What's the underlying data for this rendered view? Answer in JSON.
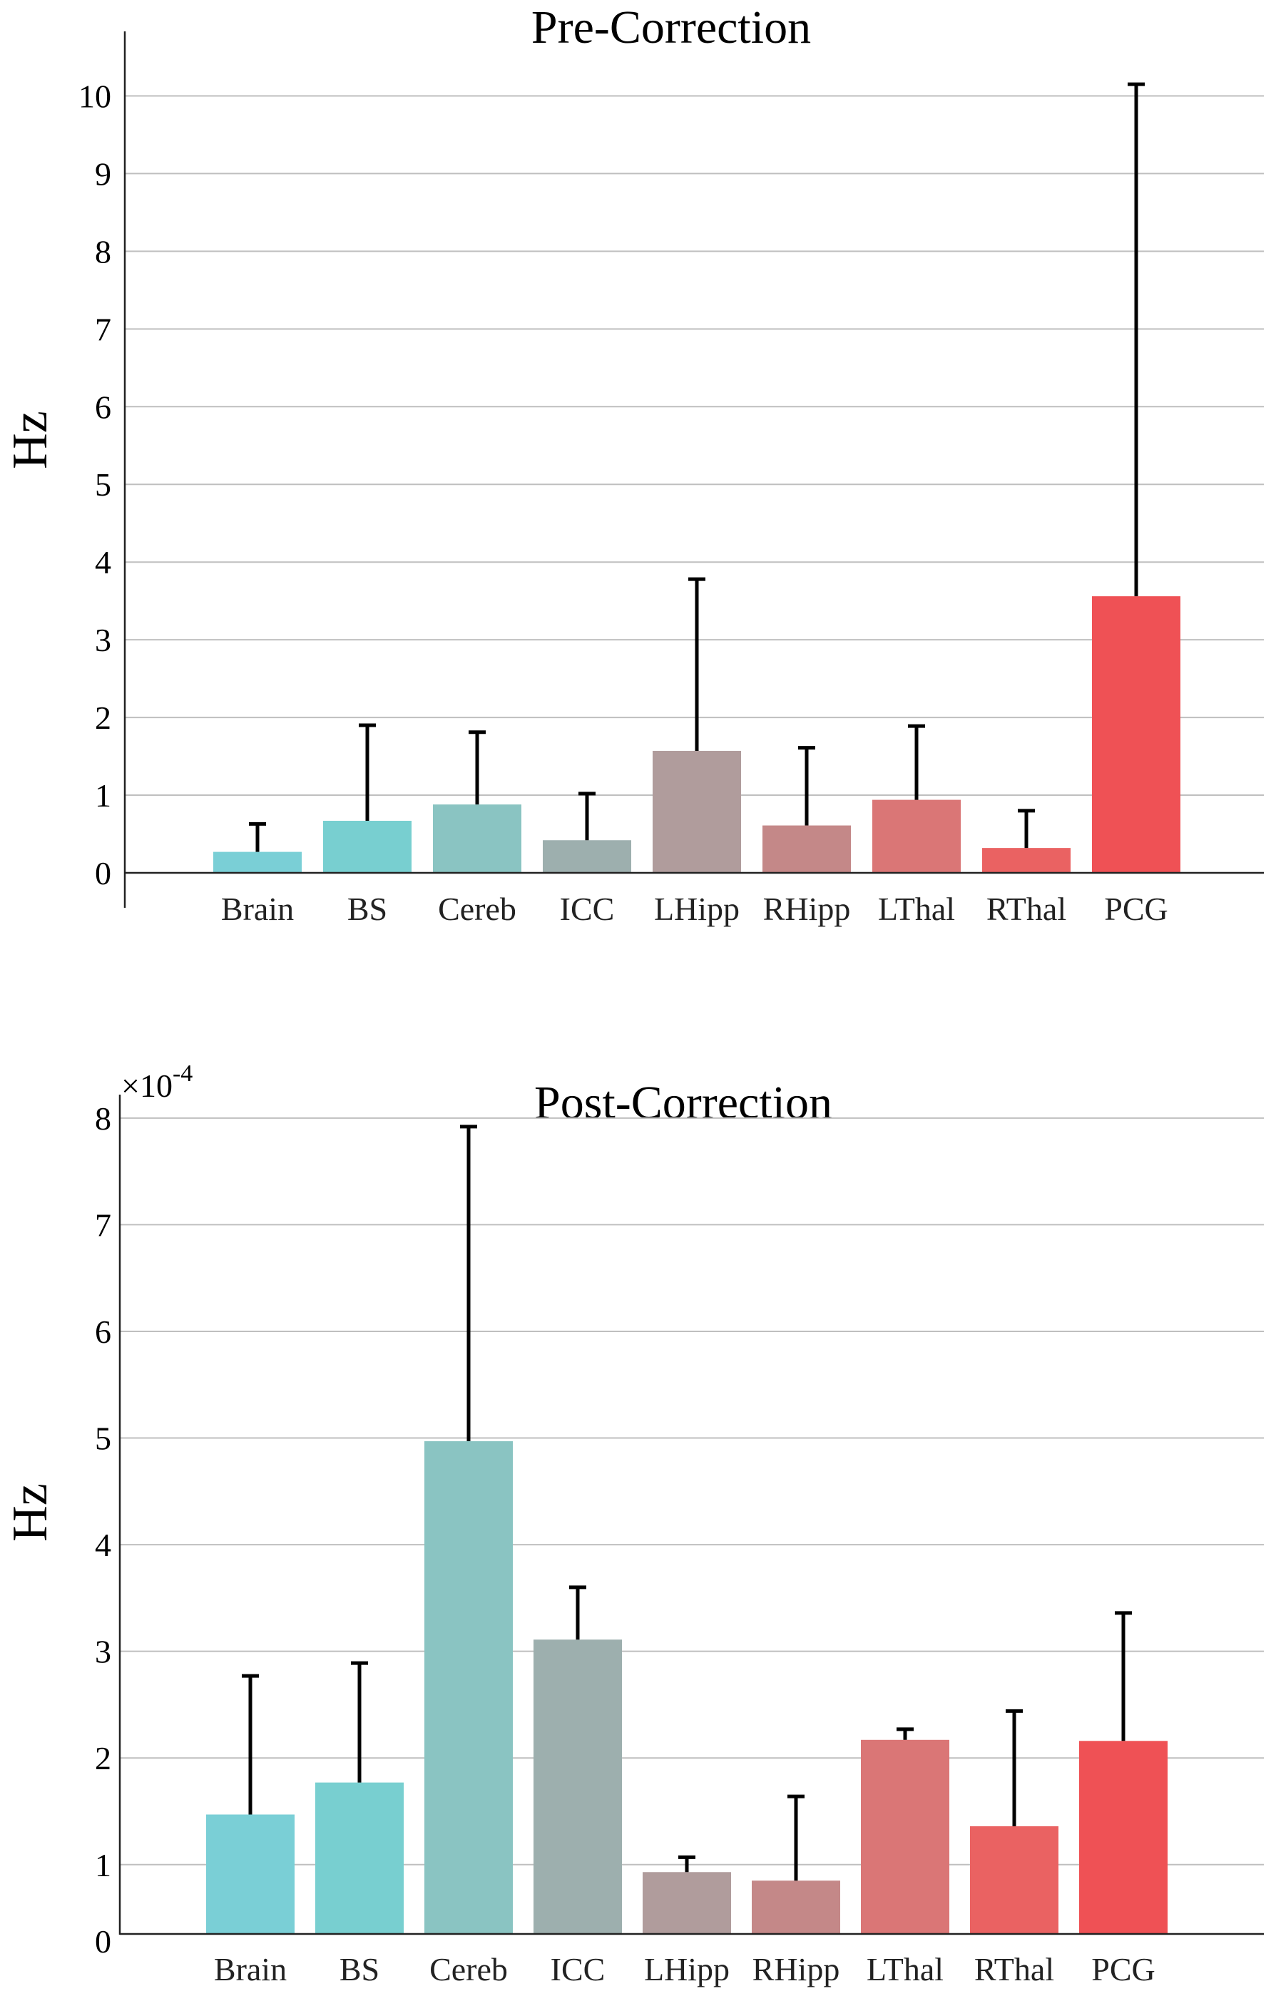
{
  "chart_data": [
    {
      "type": "bar",
      "title": "Pre-Correction",
      "ylabel": "Hz",
      "xlabel": "",
      "categories": [
        "Brain",
        "BS",
        "Cereb",
        "ICC",
        "LHipp",
        "RHipp",
        "LThal",
        "RThal",
        "PCG"
      ],
      "values": [
        0.27,
        0.67,
        0.88,
        0.42,
        1.57,
        0.61,
        0.94,
        0.32,
        3.56
      ],
      "error_upper": [
        0.63,
        1.9,
        1.81,
        1.02,
        3.78,
        1.61,
        1.89,
        0.8,
        10.15
      ],
      "colors": [
        "#7acfd6",
        "#78cfd0",
        "#8ac4c2",
        "#9dafae",
        "#b09c9c",
        "#c48888",
        "#da7676",
        "#ea6262",
        "#ef5155"
      ],
      "ylim": [
        0,
        10.5
      ],
      "yticks": [
        0,
        1,
        2,
        3,
        4,
        5,
        6,
        7,
        8,
        9,
        10
      ],
      "grid": "horizontal",
      "legend": "none"
    },
    {
      "type": "bar",
      "title": "Post-Correction",
      "ylabel": "Hz",
      "xlabel": "",
      "y_multiplier": "×10",
      "y_multiplier_exponent": "-4",
      "categories": [
        "Brain",
        "BS",
        "Cereb",
        "ICC",
        "LHipp",
        "RHipp",
        "LThal",
        "RThal",
        "PCG"
      ],
      "values": [
        1.47,
        1.77,
        4.97,
        3.11,
        0.93,
        0.85,
        2.17,
        1.36,
        2.16
      ],
      "error_upper": [
        2.77,
        2.89,
        7.92,
        3.6,
        1.07,
        1.64,
        2.27,
        2.44,
        3.36
      ],
      "colors": [
        "#7acfd6",
        "#78cfd0",
        "#8ac4c2",
        "#9dafae",
        "#b09c9c",
        "#c48888",
        "#da7676",
        "#ea6262",
        "#ef5155"
      ],
      "ylim": [
        0.35,
        8.3
      ],
      "yticks": [
        0,
        1,
        2,
        3,
        4,
        5,
        6,
        7,
        8
      ],
      "grid": "horizontal",
      "legend": "none"
    }
  ]
}
